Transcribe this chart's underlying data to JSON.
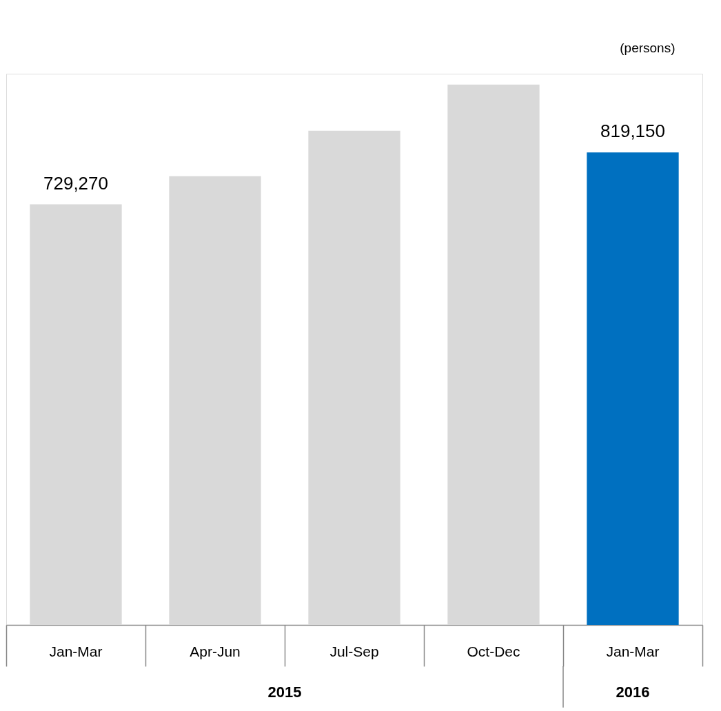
{
  "chart_data": {
    "type": "bar",
    "ylabel": "(persons)",
    "categories": [
      "Jan-Mar",
      "Apr-Jun",
      "Jul-Sep",
      "Oct-Dec",
      "Jan-Mar"
    ],
    "values": [
      729270,
      778000,
      857000,
      937000,
      819150
    ],
    "value_labels": [
      "729,270",
      null,
      null,
      null,
      "819,150"
    ],
    "colors": [
      "#d9d9d9",
      "#d9d9d9",
      "#d9d9d9",
      "#d9d9d9",
      "#0070c0"
    ],
    "annotations": [
      "2015",
      "2016"
    ]
  }
}
